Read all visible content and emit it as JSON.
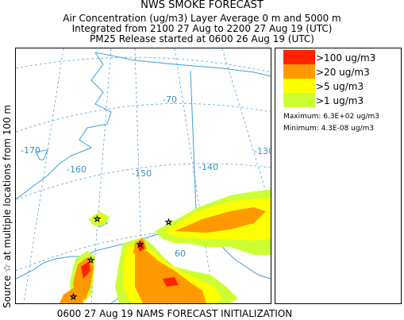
{
  "header": {
    "title": "NWS SMOKE FORECAST",
    "line2": "Air Concentration (ug/m3) Layer Average     0 m and  5000 m",
    "line3": "Integrated from 2100 27 Aug to 2200 27 Aug 19 (UTC)",
    "line4": "PM25 Release started at 0600 26 Aug 19 (UTC)"
  },
  "side_label": "Source ☆ at multiple locations    from   100 m",
  "map": {
    "lon_labels": [
      "-170",
      "-160",
      "-150",
      "-140",
      "-130",
      "-70",
      "60"
    ],
    "colors": {
      "water_line": "#3aa0d8",
      "graticule": "#5ba6d6",
      "red": "#ff2200",
      "orange": "#ff9900",
      "yellow": "#ffff00",
      "lime": "#ccff33"
    }
  },
  "legend": {
    "items": [
      {
        "label": ">100 ug/m3",
        "color": "#ff2200"
      },
      {
        "label": ">20 ug/m3",
        "color": "#ff9900"
      },
      {
        "label": ">5 ug/m3",
        "color": "#ffff00"
      },
      {
        "label": ">1 ug/m3",
        "color": "#ccff33"
      }
    ],
    "maximum": "Maximum: 6.3E+02 ug/m3",
    "minimum": "Minimum: 4.3E-08 ug/m3"
  },
  "footer": "0600 27 Aug 19 NAMS FORECAST INITIALIZATION"
}
